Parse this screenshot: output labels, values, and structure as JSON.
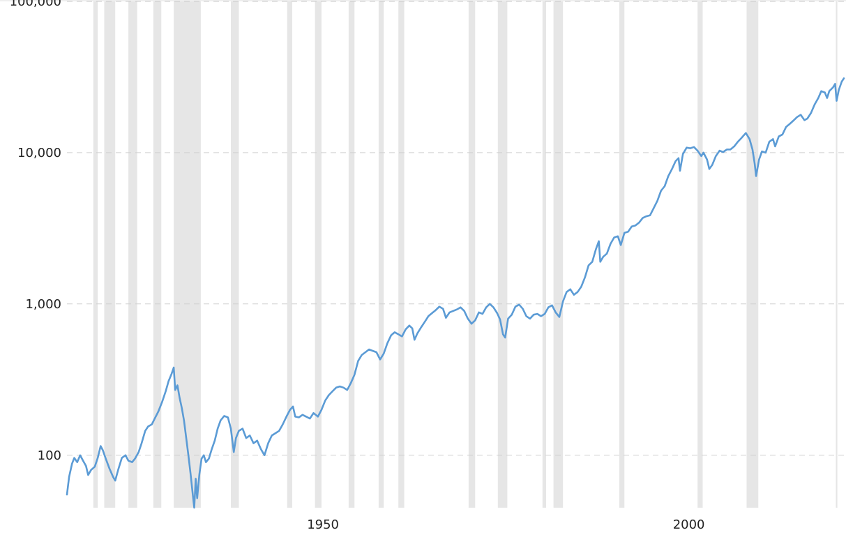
{
  "chart_data": {
    "type": "line",
    "title": "",
    "xlabel": "",
    "ylabel": "",
    "y_scale": "log",
    "ylim": [
      45,
      100000
    ],
    "xlim": [
      1915,
      2021.2
    ],
    "grid": true,
    "legend": "none",
    "colors": {
      "line": "#5b9bd5",
      "recession": "#e6e6e6",
      "grid": "#cfcfcf",
      "text": "#222222"
    },
    "y_ticks": [
      {
        "value": 100,
        "label": "100"
      },
      {
        "value": 1000,
        "label": "1,000"
      },
      {
        "value": 10000,
        "label": "10,000"
      },
      {
        "value": 100000,
        "label": "100,000"
      }
    ],
    "x_ticks": [
      {
        "value": 1950,
        "label": "1950"
      },
      {
        "value": 2000,
        "label": "2000"
      }
    ],
    "recessions": [
      [
        1918.6,
        1919.2
      ],
      [
        1920.1,
        1921.6
      ],
      [
        1923.4,
        1924.6
      ],
      [
        1926.8,
        1927.9
      ],
      [
        1929.6,
        1933.3
      ],
      [
        1937.4,
        1938.5
      ],
      [
        1945.1,
        1945.8
      ],
      [
        1948.9,
        1949.8
      ],
      [
        1953.5,
        1954.3
      ],
      [
        1957.6,
        1958.3
      ],
      [
        1960.3,
        1961.1
      ],
      [
        1969.9,
        1970.8
      ],
      [
        1973.9,
        1975.2
      ],
      [
        1980.0,
        1980.5
      ],
      [
        1981.5,
        1982.8
      ],
      [
        1990.5,
        1991.2
      ],
      [
        2001.2,
        2001.9
      ],
      [
        2007.9,
        2009.5
      ],
      [
        2020.1,
        2020.3
      ]
    ],
    "series": [
      {
        "points": [
          [
            1915.0,
            55
          ],
          [
            1915.3,
            72
          ],
          [
            1915.7,
            88
          ],
          [
            1916.0,
            96
          ],
          [
            1916.4,
            90
          ],
          [
            1916.8,
            100
          ],
          [
            1917.2,
            92
          ],
          [
            1917.6,
            85
          ],
          [
            1917.9,
            74
          ],
          [
            1918.3,
            80
          ],
          [
            1918.8,
            84
          ],
          [
            1919.2,
            96
          ],
          [
            1919.6,
            115
          ],
          [
            1919.9,
            108
          ],
          [
            1920.3,
            95
          ],
          [
            1920.8,
            82
          ],
          [
            1921.3,
            72
          ],
          [
            1921.6,
            68
          ],
          [
            1922.0,
            80
          ],
          [
            1922.5,
            96
          ],
          [
            1923.0,
            100
          ],
          [
            1923.4,
            92
          ],
          [
            1923.9,
            90
          ],
          [
            1924.3,
            95
          ],
          [
            1924.8,
            105
          ],
          [
            1925.2,
            120
          ],
          [
            1925.7,
            145
          ],
          [
            1926.1,
            155
          ],
          [
            1926.6,
            160
          ],
          [
            1927.0,
            175
          ],
          [
            1927.5,
            195
          ],
          [
            1928.0,
            225
          ],
          [
            1928.5,
            265
          ],
          [
            1928.9,
            310
          ],
          [
            1929.3,
            345
          ],
          [
            1929.6,
            380
          ],
          [
            1929.8,
            270
          ],
          [
            1930.1,
            290
          ],
          [
            1930.4,
            240
          ],
          [
            1930.7,
            205
          ],
          [
            1931.0,
            170
          ],
          [
            1931.3,
            130
          ],
          [
            1931.6,
            100
          ],
          [
            1931.9,
            75
          ],
          [
            1932.2,
            55
          ],
          [
            1932.4,
            45
          ],
          [
            1932.6,
            70
          ],
          [
            1932.8,
            52
          ],
          [
            1933.1,
            75
          ],
          [
            1933.4,
            95
          ],
          [
            1933.7,
            100
          ],
          [
            1934.0,
            90
          ],
          [
            1934.4,
            95
          ],
          [
            1934.8,
            110
          ],
          [
            1935.2,
            125
          ],
          [
            1935.6,
            150
          ],
          [
            1936.0,
            170
          ],
          [
            1936.5,
            182
          ],
          [
            1937.0,
            178
          ],
          [
            1937.4,
            150
          ],
          [
            1937.8,
            105
          ],
          [
            1938.1,
            130
          ],
          [
            1938.5,
            145
          ],
          [
            1939.0,
            150
          ],
          [
            1939.5,
            130
          ],
          [
            1940.0,
            135
          ],
          [
            1940.5,
            120
          ],
          [
            1941.0,
            125
          ],
          [
            1941.5,
            110
          ],
          [
            1942.0,
            100
          ],
          [
            1942.5,
            120
          ],
          [
            1943.0,
            135
          ],
          [
            1943.5,
            140
          ],
          [
            1944.0,
            145
          ],
          [
            1944.5,
            160
          ],
          [
            1945.0,
            180
          ],
          [
            1945.5,
            200
          ],
          [
            1945.9,
            210
          ],
          [
            1946.2,
            180
          ],
          [
            1946.7,
            178
          ],
          [
            1947.2,
            185
          ],
          [
            1947.7,
            180
          ],
          [
            1948.2,
            175
          ],
          [
            1948.7,
            190
          ],
          [
            1949.3,
            180
          ],
          [
            1949.8,
            200
          ],
          [
            1950.3,
            230
          ],
          [
            1950.8,
            250
          ],
          [
            1951.3,
            265
          ],
          [
            1951.8,
            280
          ],
          [
            1952.3,
            285
          ],
          [
            1952.8,
            280
          ],
          [
            1953.3,
            270
          ],
          [
            1953.8,
            300
          ],
          [
            1954.3,
            340
          ],
          [
            1954.8,
            420
          ],
          [
            1955.3,
            460
          ],
          [
            1955.8,
            480
          ],
          [
            1956.3,
            500
          ],
          [
            1956.8,
            490
          ],
          [
            1957.3,
            480
          ],
          [
            1957.8,
            430
          ],
          [
            1958.3,
            470
          ],
          [
            1958.8,
            550
          ],
          [
            1959.3,
            620
          ],
          [
            1959.8,
            650
          ],
          [
            1960.3,
            630
          ],
          [
            1960.8,
            610
          ],
          [
            1961.3,
            680
          ],
          [
            1961.8,
            720
          ],
          [
            1962.2,
            690
          ],
          [
            1962.5,
            580
          ],
          [
            1962.9,
            640
          ],
          [
            1963.4,
            700
          ],
          [
            1963.9,
            760
          ],
          [
            1964.4,
            830
          ],
          [
            1964.9,
            870
          ],
          [
            1965.4,
            910
          ],
          [
            1965.9,
            960
          ],
          [
            1966.4,
            930
          ],
          [
            1966.8,
            810
          ],
          [
            1967.3,
            880
          ],
          [
            1967.8,
            900
          ],
          [
            1968.3,
            920
          ],
          [
            1968.8,
            950
          ],
          [
            1969.3,
            900
          ],
          [
            1969.8,
            800
          ],
          [
            1970.3,
            740
          ],
          [
            1970.8,
            780
          ],
          [
            1971.3,
            880
          ],
          [
            1971.8,
            860
          ],
          [
            1972.3,
            950
          ],
          [
            1972.8,
            1000
          ],
          [
            1973.3,
            950
          ],
          [
            1973.8,
            870
          ],
          [
            1974.2,
            790
          ],
          [
            1974.6,
            630
          ],
          [
            1974.9,
            600
          ],
          [
            1975.3,
            800
          ],
          [
            1975.8,
            850
          ],
          [
            1976.3,
            960
          ],
          [
            1976.8,
            990
          ],
          [
            1977.3,
            930
          ],
          [
            1977.8,
            830
          ],
          [
            1978.3,
            800
          ],
          [
            1978.8,
            850
          ],
          [
            1979.3,
            860
          ],
          [
            1979.8,
            830
          ],
          [
            1980.3,
            860
          ],
          [
            1980.8,
            950
          ],
          [
            1981.3,
            980
          ],
          [
            1981.8,
            880
          ],
          [
            1982.3,
            820
          ],
          [
            1982.8,
            1040
          ],
          [
            1983.3,
            1200
          ],
          [
            1983.8,
            1250
          ],
          [
            1984.3,
            1150
          ],
          [
            1984.8,
            1200
          ],
          [
            1985.3,
            1300
          ],
          [
            1985.8,
            1500
          ],
          [
            1986.3,
            1800
          ],
          [
            1986.8,
            1900
          ],
          [
            1987.3,
            2300
          ],
          [
            1987.7,
            2600
          ],
          [
            1987.9,
            1900
          ],
          [
            1988.3,
            2050
          ],
          [
            1988.8,
            2150
          ],
          [
            1989.3,
            2500
          ],
          [
            1989.8,
            2750
          ],
          [
            1990.3,
            2800
          ],
          [
            1990.7,
            2450
          ],
          [
            1991.2,
            2950
          ],
          [
            1991.7,
            3000
          ],
          [
            1992.2,
            3250
          ],
          [
            1992.7,
            3300
          ],
          [
            1993.2,
            3450
          ],
          [
            1993.7,
            3700
          ],
          [
            1994.2,
            3800
          ],
          [
            1994.7,
            3850
          ],
          [
            1995.2,
            4300
          ],
          [
            1995.7,
            4800
          ],
          [
            1996.2,
            5600
          ],
          [
            1996.7,
            6000
          ],
          [
            1997.2,
            7000
          ],
          [
            1997.7,
            7800
          ],
          [
            1998.2,
            8800
          ],
          [
            1998.6,
            9200
          ],
          [
            1998.8,
            7600
          ],
          [
            1999.2,
            9800
          ],
          [
            1999.7,
            10800
          ],
          [
            2000.2,
            10700
          ],
          [
            2000.7,
            10900
          ],
          [
            2001.2,
            10300
          ],
          [
            2001.7,
            9500
          ],
          [
            2002.0,
            10000
          ],
          [
            2002.5,
            9000
          ],
          [
            2002.8,
            7800
          ],
          [
            2003.2,
            8300
          ],
          [
            2003.7,
            9500
          ],
          [
            2004.2,
            10300
          ],
          [
            2004.7,
            10100
          ],
          [
            2005.2,
            10500
          ],
          [
            2005.7,
            10500
          ],
          [
            2006.2,
            11000
          ],
          [
            2006.7,
            11800
          ],
          [
            2007.2,
            12500
          ],
          [
            2007.8,
            13500
          ],
          [
            2008.3,
            12300
          ],
          [
            2008.7,
            10500
          ],
          [
            2009.0,
            8500
          ],
          [
            2009.2,
            7000
          ],
          [
            2009.6,
            9000
          ],
          [
            2010.0,
            10200
          ],
          [
            2010.5,
            10000
          ],
          [
            2011.0,
            11800
          ],
          [
            2011.5,
            12300
          ],
          [
            2011.8,
            11000
          ],
          [
            2012.3,
            12800
          ],
          [
            2012.8,
            13200
          ],
          [
            2013.3,
            14800
          ],
          [
            2013.8,
            15500
          ],
          [
            2014.3,
            16300
          ],
          [
            2014.8,
            17200
          ],
          [
            2015.3,
            17800
          ],
          [
            2015.8,
            16400
          ],
          [
            2016.2,
            16800
          ],
          [
            2016.7,
            18300
          ],
          [
            2017.2,
            20800
          ],
          [
            2017.7,
            23000
          ],
          [
            2018.1,
            25500
          ],
          [
            2018.6,
            25000
          ],
          [
            2018.9,
            23000
          ],
          [
            2019.2,
            25500
          ],
          [
            2019.7,
            27000
          ],
          [
            2020.0,
            28500
          ],
          [
            2020.2,
            22000
          ],
          [
            2020.5,
            26000
          ],
          [
            2020.9,
            29500
          ],
          [
            2021.2,
            31000
          ]
        ]
      }
    ]
  }
}
